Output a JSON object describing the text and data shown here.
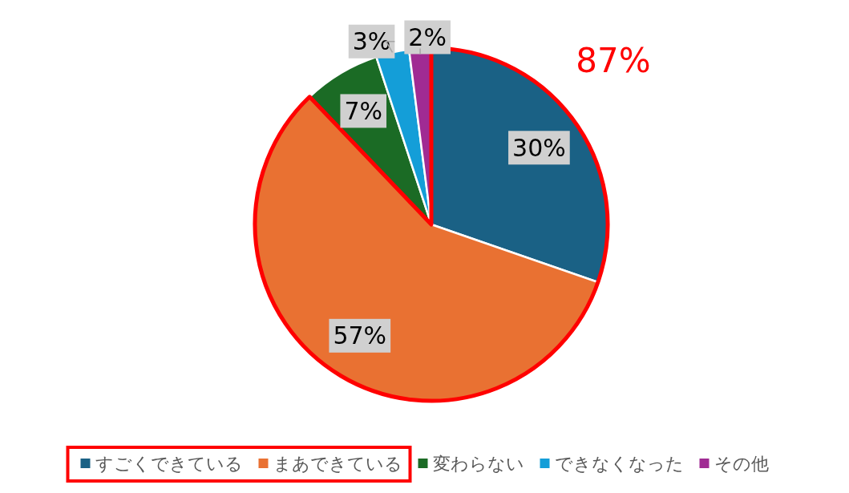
{
  "chart_data": {
    "type": "pie",
    "categories": [
      "すごくできている",
      "まあできている",
      "変わらない",
      "できなくなった",
      "その他"
    ],
    "values": [
      30,
      57,
      7,
      3,
      2
    ],
    "colors": [
      "#1a6185",
      "#e97132",
      "#1b6b25",
      "#149ed8",
      "#a02b93"
    ],
    "value_labels": [
      "30%",
      "57%",
      "7%",
      "3%",
      "2%"
    ],
    "legend": "bottom",
    "annotations": [
      "87%"
    ]
  }
}
